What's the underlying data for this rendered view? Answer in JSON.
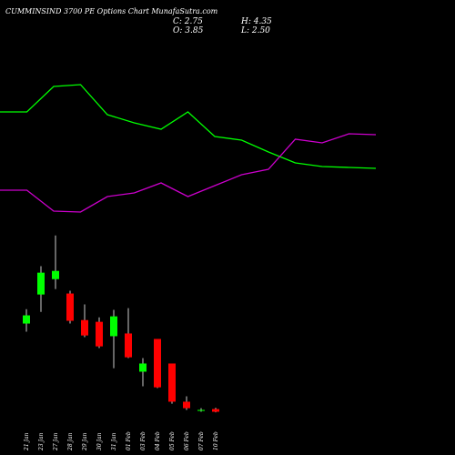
{
  "header": {
    "title": "CUMMINSIND 3700 PE Options Chart MunafaSutra.com",
    "close": "C: 2.75",
    "high": "H: 4.35",
    "open": "O: 3.85",
    "low": "L: 2.50"
  },
  "chart_data": [
    {
      "type": "line",
      "categories": [
        null,
        null,
        null,
        null,
        null,
        null,
        null,
        null,
        null,
        null,
        null,
        null,
        null,
        null,
        null
      ],
      "ylim": [
        0,
        250
      ],
      "series": [
        {
          "color": "#00ff00",
          "values": [
            127,
            127,
            155,
            157,
            124,
            115,
            108,
            127,
            100,
            96,
            83,
            71,
            67,
            66,
            65
          ]
        },
        {
          "color": "#cc00cc",
          "values": [
            41,
            41,
            18,
            17,
            34,
            38,
            49,
            34,
            46,
            58,
            64,
            97,
            93,
            103,
            102
          ]
        }
      ]
    },
    {
      "type": "candlestick",
      "categories": [
        "21 Jan",
        "23 Jan",
        "27 Jan",
        "28 Jan",
        "29 Jan",
        "30 Jan",
        "31 Jan",
        "01 Feb",
        "03 Feb",
        "04 Feb",
        "05 Feb",
        "06 Feb",
        "07 Feb",
        "10 Feb"
      ],
      "ylim": [
        0,
        77
      ],
      "up_color": "#00ff00",
      "down_color": "#ff0000",
      "open": [
        38.3,
        50.0,
        56.2,
        50.4,
        39.7,
        39.0,
        33.2,
        34.3,
        18.9,
        32.1,
        22.2,
        6.8,
        3.1,
        3.85
      ],
      "high": [
        44.1,
        61.4,
        73.8,
        51.5,
        46.0,
        40.8,
        43.8,
        44.5,
        24.4,
        32.1,
        22.2,
        9.0,
        4.2,
        4.35
      ],
      "low": [
        35.0,
        43.0,
        52.2,
        38.3,
        32.8,
        28.4,
        20.3,
        24.4,
        13.0,
        12.3,
        6.0,
        3.5,
        2.75,
        2.5
      ],
      "close": [
        41.6,
        58.8,
        59.5,
        39.4,
        33.5,
        29.1,
        41.2,
        24.7,
        22.2,
        12.6,
        6.8,
        4.2,
        3.5,
        2.75
      ]
    }
  ]
}
